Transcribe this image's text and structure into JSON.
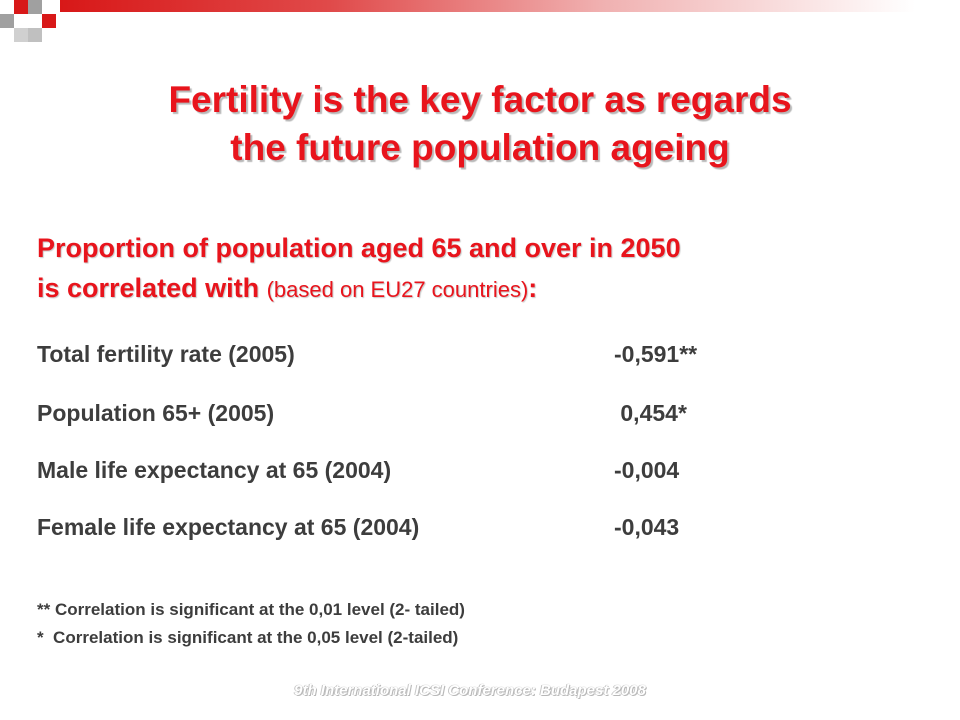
{
  "slide": {
    "title_lines": [
      "Fertility is the key factor as regards",
      "the future population ageing"
    ],
    "subtitle": {
      "line1": "Proportion of population aged 65 and over in 2050",
      "line2_bold": "is correlated with ",
      "line2_normal": "(based on EU27 countries)",
      "line2_tail": ":"
    },
    "rows": [
      {
        "label": "Total fertility rate (2005)",
        "value": "-0,591**"
      },
      {
        "label": "Population 65+ (2005)",
        "value": " 0,454*"
      },
      {
        "label": "Male life expectancy at 65 (2004)",
        "value": "-0,004"
      },
      {
        "label": "Female life expectancy at 65 (2004)",
        "value": "-0,043"
      }
    ],
    "notes": [
      "** Correlation is significant at the 0,01 level (2- tailed)",
      "*  Correlation is significant at the 0,05 level (2-tailed)"
    ],
    "footer": "9th International ICSI Conference: Budapest 2008"
  },
  "colors": {
    "accent_red": "#e8141c",
    "body_text": "#3d3d3d",
    "deco_red": "#d81818",
    "deco_grey": "#a0a0a0"
  }
}
